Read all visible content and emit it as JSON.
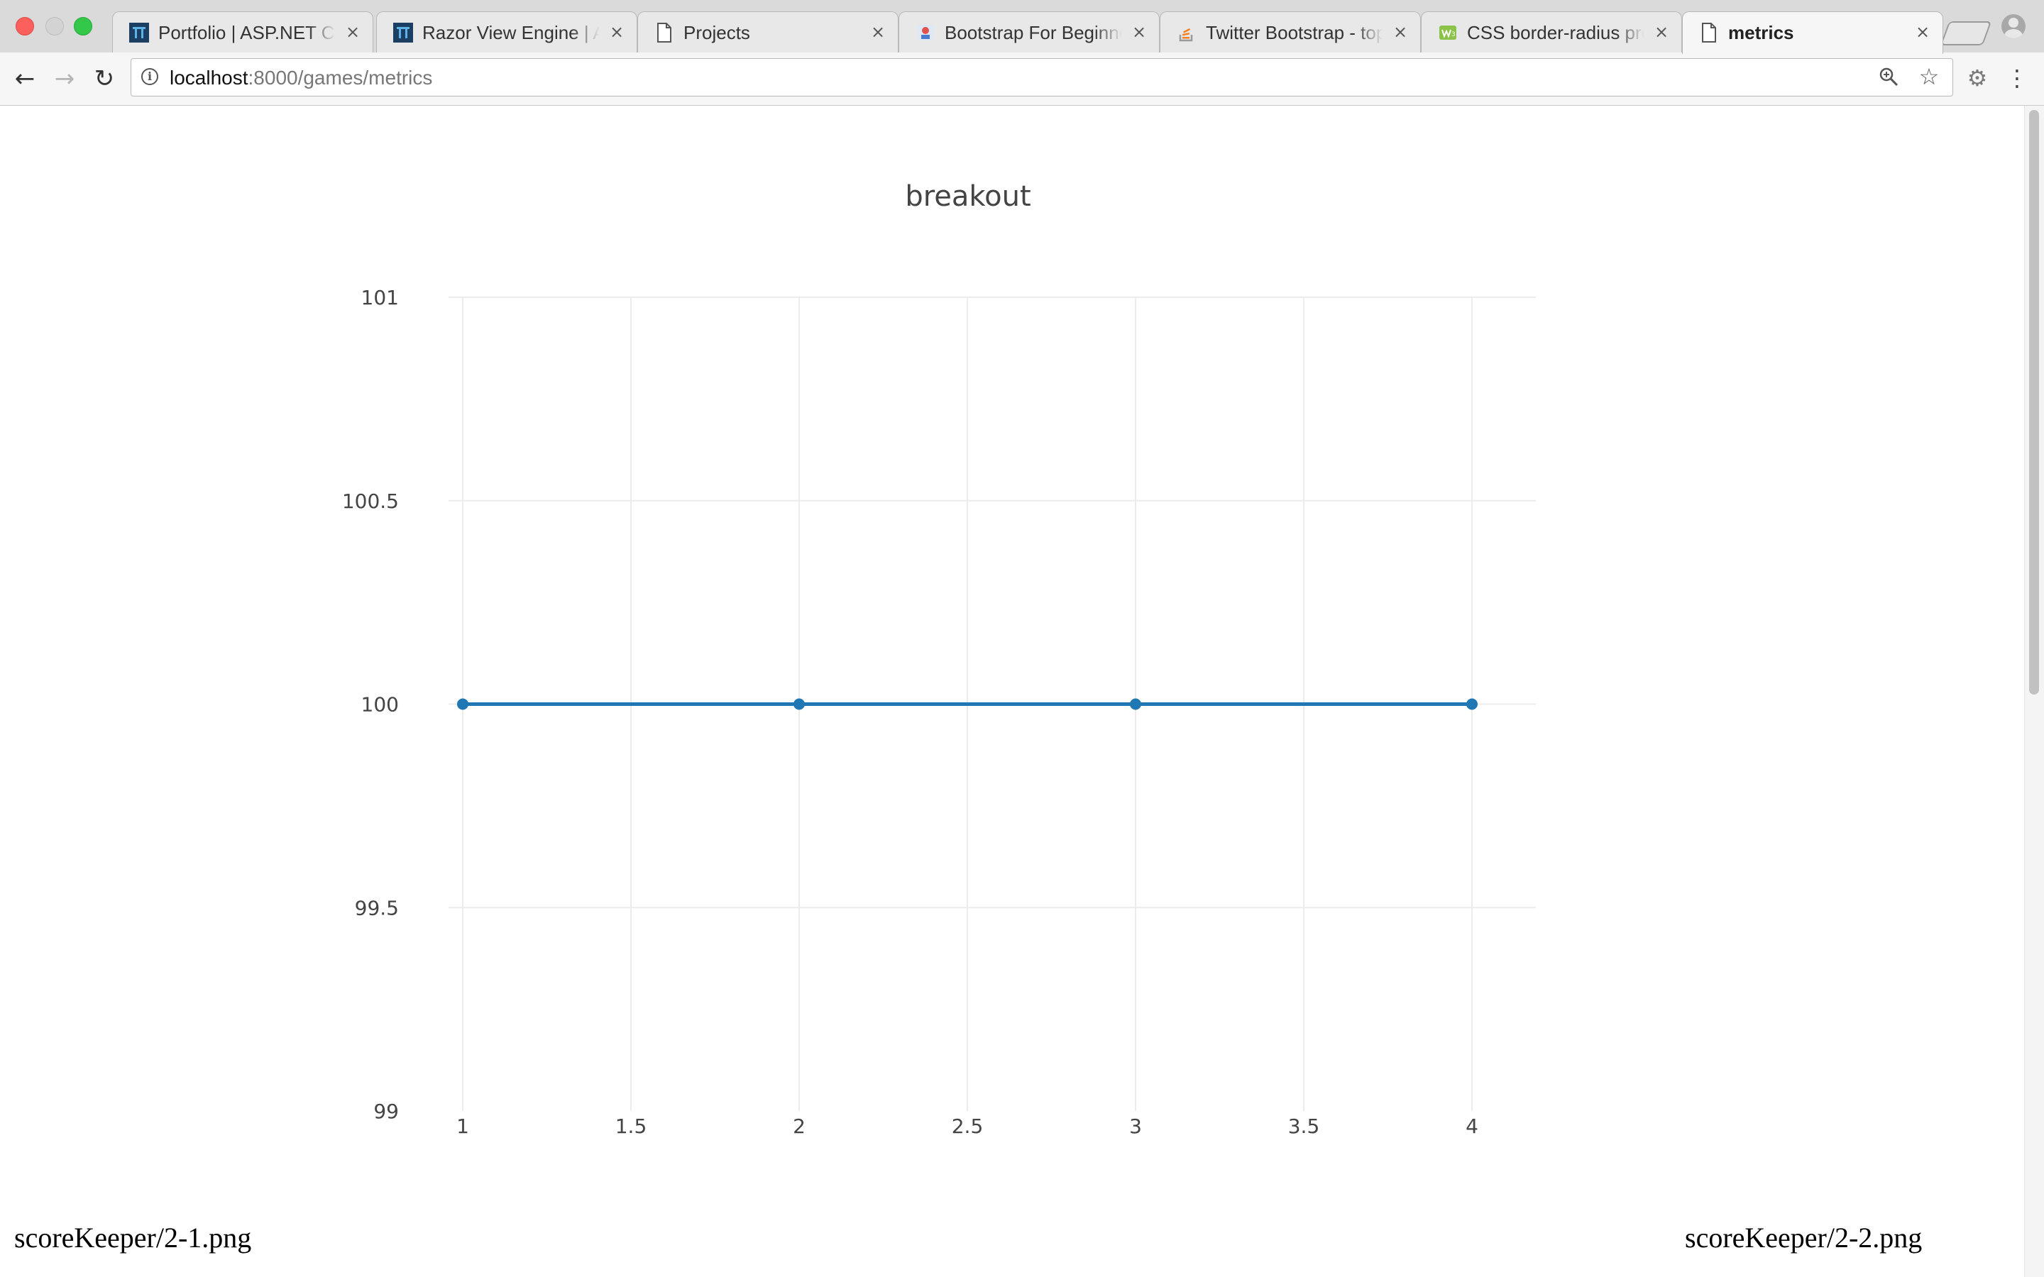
{
  "browser": {
    "tabs": [
      {
        "title": "Portfolio | ASP.NET Co",
        "favicon": "aspnet-icon",
        "active": false
      },
      {
        "title": "Razor View Engine | AS",
        "favicon": "aspnet-icon",
        "active": false
      },
      {
        "title": "Projects",
        "favicon": "document-icon",
        "active": false
      },
      {
        "title": "Bootstrap For Beginner",
        "favicon": "bootstrap-icon",
        "active": false
      },
      {
        "title": "Twitter Bootstrap - top",
        "favicon": "stackoverflow-icon",
        "active": false
      },
      {
        "title": "CSS border-radius pro",
        "favicon": "w3schools-icon",
        "active": false
      },
      {
        "title": "metrics",
        "favicon": "document-icon",
        "active": true
      }
    ],
    "url_host": "localhost",
    "url_rest": ":8000/games/metrics"
  },
  "chart_data": {
    "type": "line",
    "title": "breakout",
    "x": [
      1,
      2,
      3,
      4
    ],
    "series": [
      {
        "values": [
          100,
          100,
          100,
          100
        ],
        "color": "#1f77b4"
      }
    ],
    "xlim": [
      1,
      4
    ],
    "ylim": [
      99,
      101
    ],
    "xticks": [
      "1",
      "1.5",
      "2",
      "2.5",
      "3",
      "3.5",
      "4"
    ],
    "yticks": [
      "99",
      "99.5",
      "100",
      "100.5",
      "101"
    ],
    "grid": true
  },
  "captions": {
    "left": "scoreKeeper/2-1.png",
    "right": "scoreKeeper/2-2.png"
  }
}
